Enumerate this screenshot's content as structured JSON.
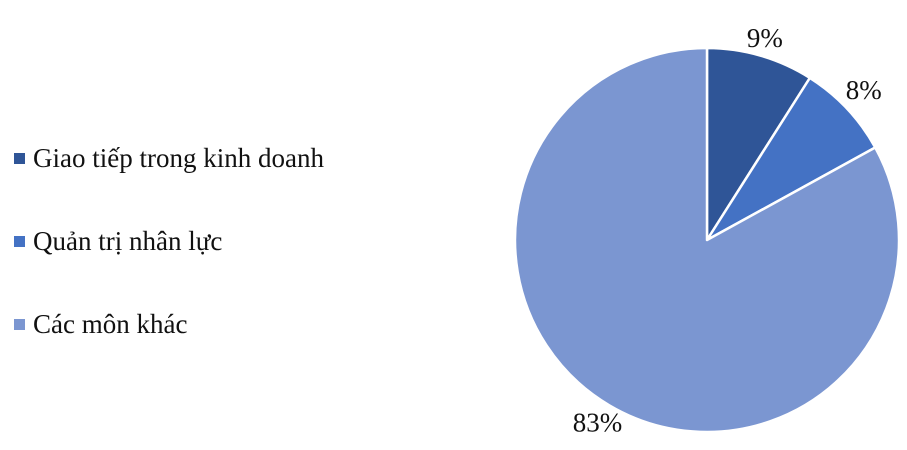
{
  "chart_data": {
    "type": "pie",
    "categories": [
      "Giao tiếp trong kinh doanh",
      "Quản trị nhân lực",
      "Các môn khác"
    ],
    "values": [
      9,
      8,
      83
    ],
    "data_labels": [
      "9%",
      "8%",
      "83%"
    ],
    "colors": [
      "#2f5597",
      "#4472c4",
      "#7b96d1"
    ],
    "legend_position": "left",
    "start_angle": "12 o'clock",
    "direction": "clockwise"
  }
}
